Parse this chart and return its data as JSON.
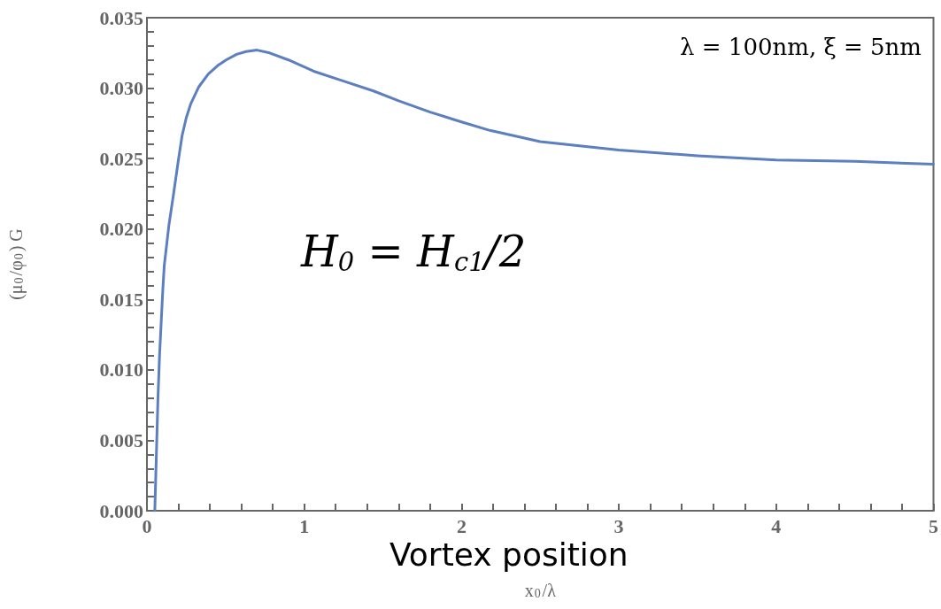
{
  "chart_data": {
    "type": "line",
    "xlabel": "x$_{0}$/λ",
    "ylabel": "(μ$_{0}$/φ$_{0}$) G",
    "annotations": [
      "Vortex position",
      "λ = 100nm, ξ = 5nm",
      "H$_{0}$ = H$_{c1}$/2"
    ],
    "series": [
      {
        "color": "#5b7fbf",
        "x": [
          0.05,
          0.06,
          0.07,
          0.08,
          0.1,
          0.11,
          0.14,
          0.168,
          0.2,
          0.223,
          0.25,
          0.279,
          0.33,
          0.39,
          0.45,
          0.503,
          0.57,
          0.63,
          0.7,
          0.78,
          0.9,
          1.06,
          1.25,
          1.44,
          1.6,
          1.8,
          2.0,
          2.18,
          2.5,
          3.0,
          3.5,
          4.0,
          4.5,
          5.0
        ],
        "values": [
          0.0,
          0.004,
          0.008,
          0.011,
          0.0155,
          0.0174,
          0.0203,
          0.0224,
          0.0249,
          0.0266,
          0.0279,
          0.0289,
          0.0301,
          0.031,
          0.0316,
          0.032,
          0.0324,
          0.0326,
          0.0327,
          0.0325,
          0.032,
          0.0312,
          0.0305,
          0.0298,
          0.0291,
          0.0283,
          0.0276,
          0.027,
          0.0262,
          0.0256,
          0.0252,
          0.0249,
          0.0248,
          0.0246
        ]
      }
    ],
    "xlim": [
      0,
      5
    ],
    "xticks": [
      0,
      1,
      2,
      3,
      4,
      5
    ],
    "ylim": [
      0,
      0.035
    ],
    "yticks": [
      {
        "value": 0,
        "label": "0.000"
      },
      {
        "value": 0.005,
        "label": "0.005"
      },
      {
        "value": 0.01,
        "label": "0.010"
      },
      {
        "value": 0.015,
        "label": "0.015"
      },
      {
        "value": 0.02,
        "label": "0.020"
      },
      {
        "value": 0.025,
        "label": "0.025"
      },
      {
        "value": 0.03,
        "label": "0.030"
      },
      {
        "value": 0.035,
        "label": "0.035"
      }
    ],
    "grid": false,
    "marker": "none",
    "line_style": "solid"
  }
}
